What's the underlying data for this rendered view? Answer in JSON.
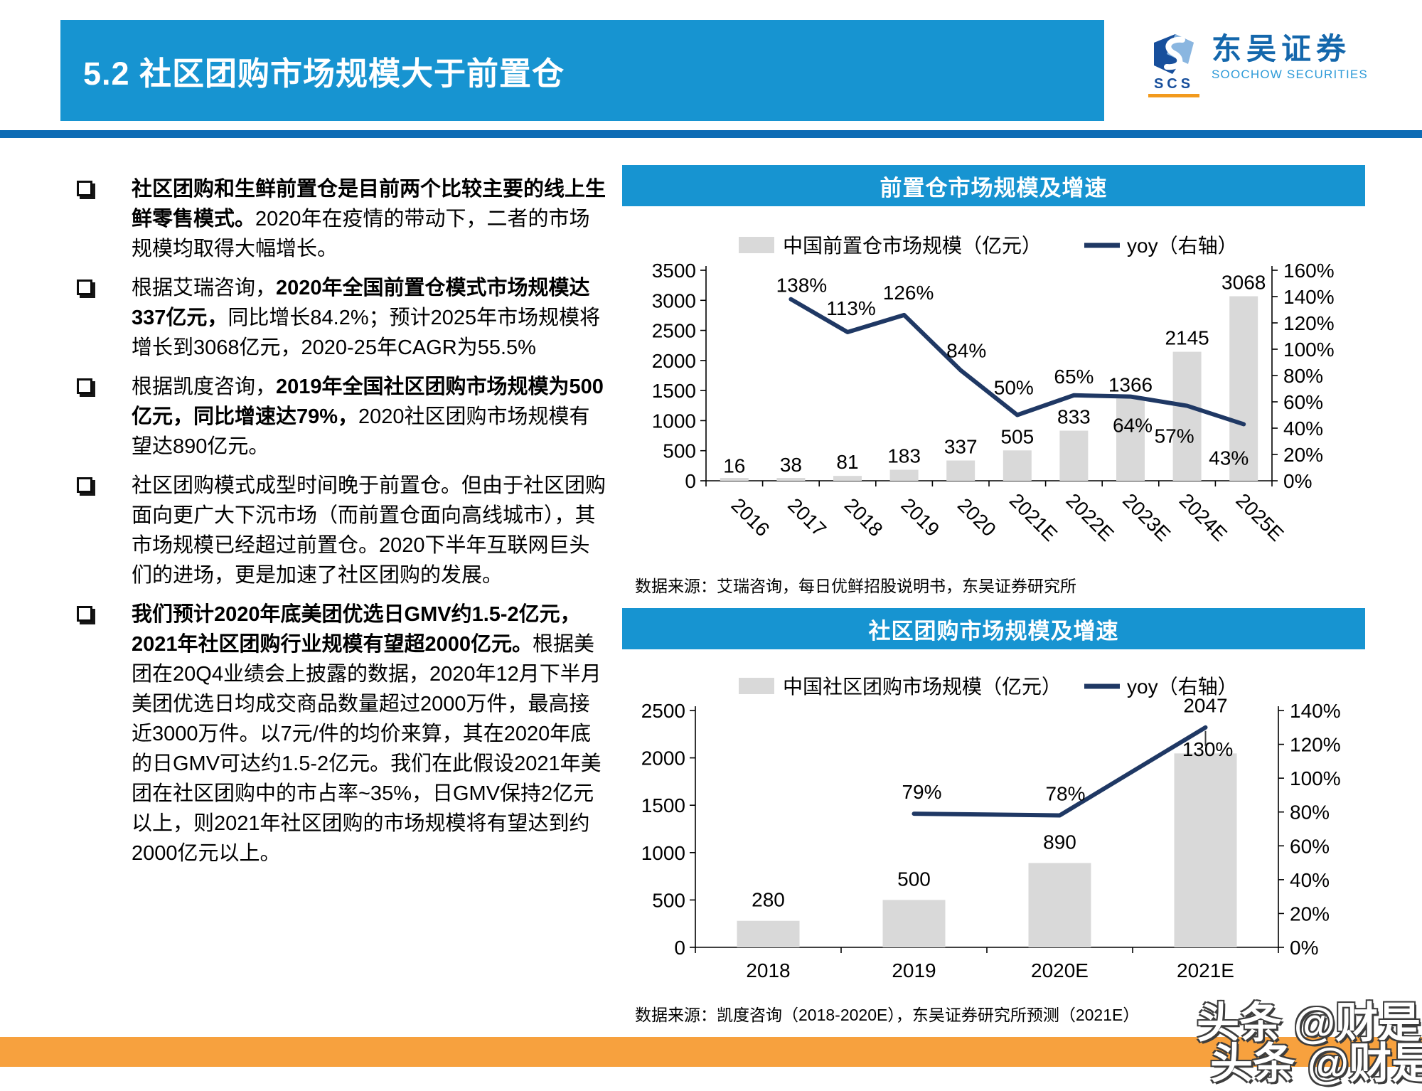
{
  "page": {
    "title": "5.2 社区团购市场规模大于前置仓",
    "watermark": "头条 @财是"
  },
  "logo": {
    "abbr": "SCS",
    "cn": "东吴证券",
    "en": "SOOCHOW SECURITIES"
  },
  "colors": {
    "accent_blue": "#1794d1",
    "divider_blue": "#0d6cb5",
    "line_navy": "#1f3864",
    "bar_gray": "#d9d9d9",
    "orange_band": "#f7a13e"
  },
  "bullets": [
    {
      "segments": [
        {
          "b": 1,
          "t": "社区团购和生鲜前置仓是目前两个比较主要的线上生鲜零售模式。"
        },
        {
          "b": 0,
          "t": "2020年在疫情的带动下，二者的市场规模均取得大幅增长。"
        }
      ]
    },
    {
      "segments": [
        {
          "b": 0,
          "t": "根据艾瑞咨询，"
        },
        {
          "b": 1,
          "t": "2020年全国前置仓模式市场规模达337亿元，"
        },
        {
          "b": 0,
          "t": "同比增长84.2%；预计2025年市场规模将增长到3068亿元，2020-25年CAGR为55.5%"
        }
      ]
    },
    {
      "segments": [
        {
          "b": 0,
          "t": "根据凯度咨询，"
        },
        {
          "b": 1,
          "t": "2019年全国社区团购市场规模为500亿元，同比增速达79%，"
        },
        {
          "b": 0,
          "t": "2020社区团购市场规模有望达890亿元。"
        }
      ]
    },
    {
      "segments": [
        {
          "b": 0,
          "t": "社区团购模式成型时间晚于前置仓。但由于社区团购面向更广大下沉市场（而前置仓面向高线城市），其市场规模已经超过前置仓。2020下半年互联网巨头们的进场，更是加速了社区团购的发展。"
        }
      ]
    },
    {
      "segments": [
        {
          "b": 1,
          "t": "我们预计2020年底美团优选日GMV约1.5-2亿元，2021年社区团购行业规模有望超2000亿元。"
        },
        {
          "b": 0,
          "t": "根据美团在20Q4业绩会上披露的数据，2020年12月下半月美团优选日均成交商品数量超过2000万件，最高接近3000万件。以7元/件的均价来算，其在2020年底的日GMV可达约1.5-2亿元。我们在此假设2021年美团在社区团购中的市占率~35%，日GMV保持2亿元以上，则2021年社区团购的市场规模将有望达到约2000亿元以上。"
        }
      ]
    }
  ],
  "chart_data": [
    {
      "type": "bar+line",
      "title": "前置仓市场规模及增速",
      "source": "数据来源：艾瑞咨询，每日优鲜招股说明书，东吴证券研究所",
      "categories": [
        "2016",
        "2017",
        "2018",
        "2019",
        "2020",
        "2021E",
        "2022E",
        "2023E",
        "2024E",
        "2025E"
      ],
      "bar_series": {
        "name": "中国前置仓市场规模（亿元）",
        "axis": "left",
        "values": [
          16,
          38,
          81,
          183,
          337,
          505,
          833,
          1366,
          2145,
          3068
        ]
      },
      "line_series": {
        "name": "yoy（右轴）",
        "axis": "right",
        "suffix": "%",
        "values": [
          null,
          138,
          113,
          126,
          84,
          50,
          65,
          64,
          57,
          43
        ]
      },
      "left_axis": {
        "min": 0,
        "max": 3500,
        "step": 500
      },
      "right_axis": {
        "min": 0,
        "max": 160,
        "step": 20,
        "suffix": "%"
      },
      "legend_position": "top",
      "grid": false
    },
    {
      "type": "bar+line",
      "title": "社区团购市场规模及增速",
      "source": "数据来源：凯度咨询（2018-2020E），东吴证券研究所预测（2021E）",
      "categories": [
        "2018",
        "2019",
        "2020E",
        "2021E"
      ],
      "bar_series": {
        "name": "中国社区团购市场规模（亿元）",
        "axis": "left",
        "values": [
          280,
          500,
          890,
          2047
        ]
      },
      "line_series": {
        "name": "yoy（右轴）",
        "axis": "right",
        "suffix": "%",
        "values": [
          null,
          79,
          78,
          130
        ]
      },
      "left_axis": {
        "min": 0,
        "max": 2500,
        "step": 500
      },
      "right_axis": {
        "min": 0,
        "max": 140,
        "step": 20,
        "suffix": "%"
      },
      "legend_position": "top",
      "grid": false
    }
  ]
}
